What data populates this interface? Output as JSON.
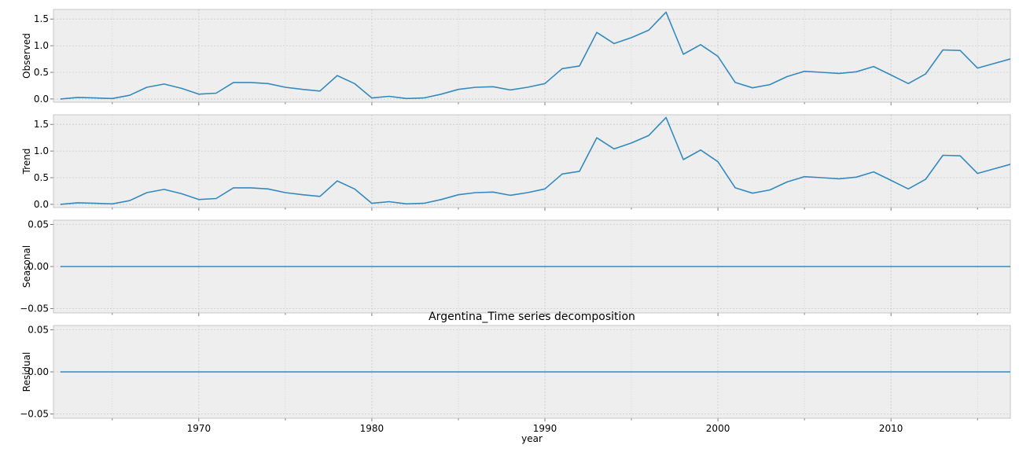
{
  "chart_data": {
    "type": "line",
    "title": "Argentina_Time series decomposition",
    "xlabel": "year",
    "xlim": [
      1961.6,
      2016.9
    ],
    "x_ticks": [
      1970,
      1980,
      1990,
      2000,
      2010
    ],
    "grid": true,
    "x": [
      1962,
      1963,
      1964,
      1965,
      1966,
      1967,
      1968,
      1969,
      1970,
      1971,
      1972,
      1973,
      1974,
      1975,
      1976,
      1977,
      1978,
      1979,
      1980,
      1981,
      1982,
      1983,
      1984,
      1985,
      1986,
      1987,
      1988,
      1989,
      1990,
      1991,
      1992,
      1993,
      1994,
      1995,
      1996,
      1997,
      1998,
      1999,
      2000,
      2001,
      2002,
      2003,
      2004,
      2005,
      2006,
      2007,
      2008,
      2009,
      2010,
      2011,
      2012,
      2013,
      2014,
      2015,
      2016,
      2017
    ],
    "panels": [
      {
        "ylabel": "Observed",
        "ylim": [
          -0.06,
          1.68
        ],
        "y_ticks": [
          0.0,
          0.5,
          1.0,
          1.5
        ],
        "y_tick_labels": [
          "0.0",
          "0.5",
          "1.0",
          "1.5"
        ],
        "values": [
          0.0,
          0.03,
          0.02,
          0.01,
          0.07,
          0.22,
          0.28,
          0.2,
          0.09,
          0.11,
          0.31,
          0.31,
          0.29,
          0.22,
          0.18,
          0.15,
          0.44,
          0.29,
          0.02,
          0.05,
          0.01,
          0.02,
          0.09,
          0.18,
          0.22,
          0.23,
          0.17,
          0.22,
          0.29,
          0.57,
          0.62,
          1.25,
          1.04,
          1.15,
          1.29,
          1.63,
          0.84,
          1.02,
          0.8,
          0.31,
          0.21,
          0.27,
          0.42,
          0.52,
          0.5,
          0.48,
          0.51,
          0.61,
          0.45,
          0.29,
          0.47,
          0.92,
          0.91,
          0.58,
          0.67,
          0.76
        ]
      },
      {
        "ylabel": "Trend",
        "ylim": [
          -0.06,
          1.68
        ],
        "y_ticks": [
          0.0,
          0.5,
          1.0,
          1.5
        ],
        "y_tick_labels": [
          "0.0",
          "0.5",
          "1.0",
          "1.5"
        ],
        "values": [
          0.0,
          0.03,
          0.02,
          0.01,
          0.07,
          0.22,
          0.28,
          0.2,
          0.09,
          0.11,
          0.31,
          0.31,
          0.29,
          0.22,
          0.18,
          0.15,
          0.44,
          0.29,
          0.02,
          0.05,
          0.01,
          0.02,
          0.09,
          0.18,
          0.22,
          0.23,
          0.17,
          0.22,
          0.29,
          0.57,
          0.62,
          1.25,
          1.04,
          1.15,
          1.29,
          1.63,
          0.84,
          1.02,
          0.8,
          0.31,
          0.21,
          0.27,
          0.42,
          0.52,
          0.5,
          0.48,
          0.51,
          0.61,
          0.45,
          0.29,
          0.47,
          0.92,
          0.91,
          0.58,
          0.67,
          0.76
        ]
      },
      {
        "ylabel": "Seasonal",
        "ylim": [
          -0.055,
          0.055
        ],
        "y_ticks": [
          0.05,
          0.0,
          -0.05
        ],
        "y_tick_labels": [
          "0.05",
          "0.00",
          "−0.05"
        ],
        "values": [
          0,
          0,
          0,
          0,
          0,
          0,
          0,
          0,
          0,
          0,
          0,
          0,
          0,
          0,
          0,
          0,
          0,
          0,
          0,
          0,
          0,
          0,
          0,
          0,
          0,
          0,
          0,
          0,
          0,
          0,
          0,
          0,
          0,
          0,
          0,
          0,
          0,
          0,
          0,
          0,
          0,
          0,
          0,
          0,
          0,
          0,
          0,
          0,
          0,
          0,
          0,
          0,
          0,
          0,
          0,
          0
        ]
      },
      {
        "ylabel": "Residual",
        "ylim": [
          -0.055,
          0.055
        ],
        "y_ticks": [
          0.05,
          0.0,
          -0.05
        ],
        "y_tick_labels": [
          "0.05",
          "0.00",
          "−0.05"
        ],
        "values": [
          0,
          0,
          0,
          0,
          0,
          0,
          0,
          0,
          0,
          0,
          0,
          0,
          0,
          0,
          0,
          0,
          0,
          0,
          0,
          0,
          0,
          0,
          0,
          0,
          0,
          0,
          0,
          0,
          0,
          0,
          0,
          0,
          0,
          0,
          0,
          0,
          0,
          0,
          0,
          0,
          0,
          0,
          0,
          0,
          0,
          0,
          0,
          0,
          0,
          0,
          0,
          0,
          0,
          0,
          0,
          0
        ]
      }
    ],
    "colors": {
      "line": "#348abd",
      "panel_bg": "#eeeeee",
      "grid": "#cbcbcb",
      "frame": "#bcbcbc"
    }
  }
}
